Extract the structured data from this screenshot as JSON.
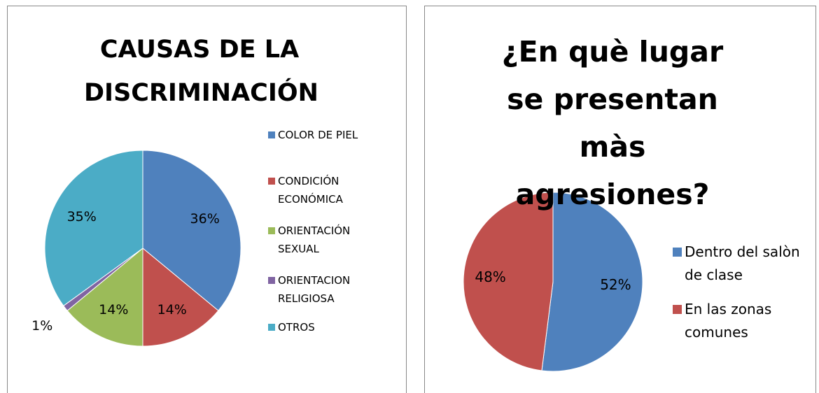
{
  "chart_data": [
    {
      "type": "pie",
      "title": "CAUSAS DE LA DISCRIMINACIÓN",
      "categories": [
        "COLOR DE PIEL",
        "CONDICIÓN ECONÓMICA",
        "ORIENTACIÓN SEXUAL",
        "ORIENTACION RELIGIOSA",
        "OTROS"
      ],
      "values": [
        36,
        14,
        14,
        1,
        35
      ],
      "value_labels": [
        "36%",
        "14%",
        "14%",
        "1%",
        "35%"
      ],
      "colors": [
        "#4f81bd",
        "#c0504d",
        "#9bbb59",
        "#8064a2",
        "#4bacc6"
      ],
      "legend": "right"
    },
    {
      "type": "pie",
      "title": "¿En què lugar se presentan màs agresiones?",
      "categories": [
        "Dentro del salòn de clase",
        "En las zonas comunes"
      ],
      "values": [
        52,
        48
      ],
      "value_labels": [
        "52%",
        "48%"
      ],
      "colors": [
        "#4f81bd",
        "#c0504d"
      ],
      "legend": "right"
    }
  ]
}
